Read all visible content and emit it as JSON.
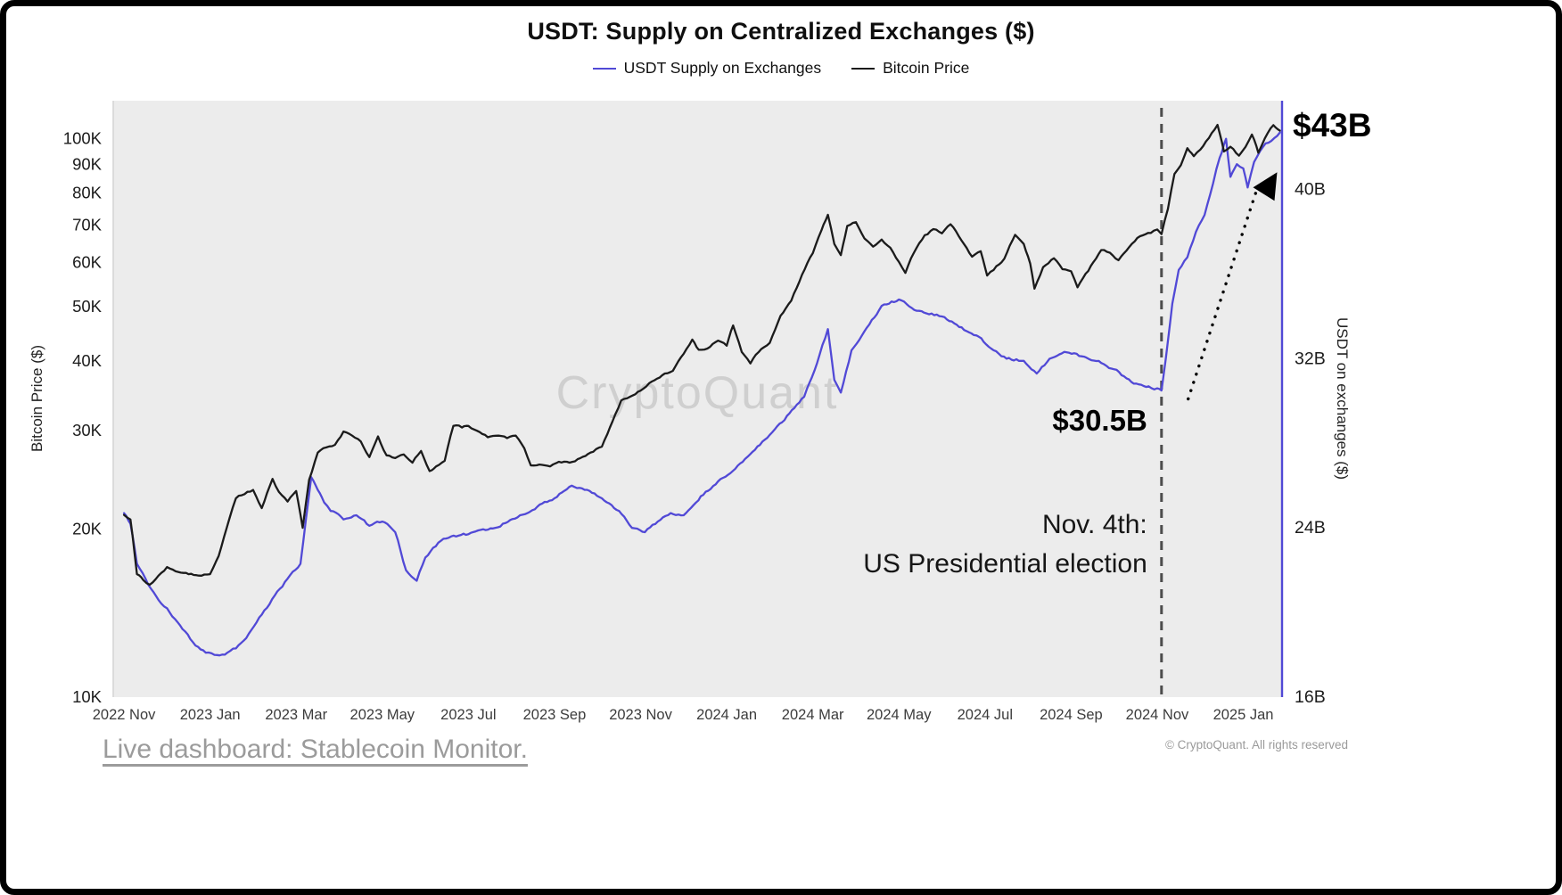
{
  "title": "USDT: Supply on Centralized Exchanges ($)",
  "legend": [
    {
      "label": "USDT Supply on Exchanges",
      "color": "#5149d6"
    },
    {
      "label": "Bitcoin Price",
      "color": "#1b1b1b"
    }
  ],
  "watermark": "CryptoQuant",
  "footer": {
    "link": "Live dashboard: Stablecoin Monitor.",
    "copyright": "© CryptoQuant. All rights reserved"
  },
  "chart_data": {
    "type": "line",
    "x_unit": "months since 2022-11-01",
    "xlim": [
      -0.25,
      26.9
    ],
    "plot_bg": "#ececec",
    "left_axis": {
      "title": "Bitcoin Price ($)",
      "scale": "log",
      "unit": "thousand USD",
      "lim": [
        10,
        117
      ],
      "ticks": [
        {
          "v": 100,
          "label": "100K"
        },
        {
          "v": 90,
          "label": "90K"
        },
        {
          "v": 80,
          "label": "80K"
        },
        {
          "v": 70,
          "label": "70K"
        },
        {
          "v": 60,
          "label": "60K"
        },
        {
          "v": 50,
          "label": "50K"
        },
        {
          "v": 40,
          "label": "40K"
        },
        {
          "v": 30,
          "label": "30K"
        },
        {
          "v": 20,
          "label": "20K"
        },
        {
          "v": 10,
          "label": "10K"
        }
      ]
    },
    "right_axis": {
      "title": "USDT on exchanges ($)",
      "scale": "linear",
      "unit": "billion USD",
      "lim": [
        16,
        44.2
      ],
      "ticks": [
        {
          "v": 40,
          "label": "40B"
        },
        {
          "v": 32,
          "label": "32B"
        },
        {
          "v": 24,
          "label": "24B"
        },
        {
          "v": 16,
          "label": "16B"
        }
      ]
    },
    "x_ticks": [
      {
        "v": 0,
        "label": "2022 Nov"
      },
      {
        "v": 2,
        "label": "2023 Jan"
      },
      {
        "v": 4,
        "label": "2023 Mar"
      },
      {
        "v": 6,
        "label": "2023 May"
      },
      {
        "v": 8,
        "label": "2023 Jul"
      },
      {
        "v": 10,
        "label": "2023 Sep"
      },
      {
        "v": 12,
        "label": "2023 Nov"
      },
      {
        "v": 14,
        "label": "2024 Jan"
      },
      {
        "v": 16,
        "label": "2024 Mar"
      },
      {
        "v": 18,
        "label": "2024 May"
      },
      {
        "v": 20,
        "label": "2024 Jul"
      },
      {
        "v": 22,
        "label": "2024 Sep"
      },
      {
        "v": 24,
        "label": "2024 Nov"
      },
      {
        "v": 26,
        "label": "2025 Jan"
      }
    ],
    "series": [
      {
        "name": "USDT Supply on Exchanges",
        "axis": "right",
        "color": "#5149d6",
        "unit": "billion USD",
        "x": [
          0.0,
          0.15,
          0.3,
          0.5,
          0.8,
          1.0,
          1.3,
          1.6,
          1.9,
          2.1,
          2.4,
          2.6,
          2.9,
          3.2,
          3.5,
          3.8,
          4.1,
          4.35,
          4.5,
          4.65,
          4.8,
          5.1,
          5.4,
          5.7,
          6.0,
          6.3,
          6.55,
          6.8,
          7.0,
          7.3,
          7.6,
          8.0,
          8.4,
          8.8,
          9.2,
          9.6,
          10.0,
          10.4,
          10.7,
          11.1,
          11.5,
          11.8,
          12.1,
          12.4,
          12.7,
          13.0,
          13.4,
          13.8,
          14.2,
          14.6,
          15.0,
          15.4,
          15.8,
          16.1,
          16.35,
          16.5,
          16.65,
          16.9,
          17.2,
          17.6,
          18.0,
          18.3,
          18.7,
          19.0,
          19.4,
          19.8,
          20.2,
          20.5,
          20.9,
          21.2,
          21.5,
          21.9,
          22.3,
          22.7,
          23.0,
          23.4,
          23.8,
          24.0,
          24.1,
          24.2,
          24.35,
          24.5,
          24.7,
          24.9,
          25.1,
          25.3,
          25.45,
          25.6,
          25.7,
          25.85,
          26.0,
          26.1,
          26.25,
          26.45,
          26.65,
          26.85
        ],
        "values": [
          24.7,
          24.2,
          22.3,
          21.6,
          20.6,
          20.2,
          19.4,
          18.6,
          18.1,
          18.0,
          18.1,
          18.3,
          19.0,
          19.9,
          20.8,
          21.6,
          22.3,
          26.4,
          25.8,
          25.2,
          24.8,
          24.4,
          24.6,
          24.1,
          24.3,
          23.8,
          22.0,
          21.5,
          22.6,
          23.3,
          23.6,
          23.7,
          23.9,
          24.2,
          24.6,
          25.0,
          25.4,
          26.0,
          25.8,
          25.4,
          24.8,
          24.0,
          23.8,
          24.3,
          24.7,
          24.6,
          25.5,
          26.2,
          26.8,
          27.6,
          28.4,
          29.3,
          30.2,
          31.8,
          33.4,
          31.0,
          30.4,
          32.4,
          33.3,
          34.5,
          34.8,
          34.4,
          34.1,
          34.0,
          33.5,
          33.1,
          32.4,
          32.0,
          31.9,
          31.3,
          32.0,
          32.3,
          32.1,
          31.8,
          31.5,
          30.9,
          30.7,
          30.6,
          30.5,
          32.0,
          34.6,
          36.2,
          36.8,
          38.0,
          38.8,
          40.3,
          41.5,
          42.4,
          40.6,
          41.2,
          41.0,
          40.1,
          41.3,
          42.0,
          42.3,
          42.7
        ]
      },
      {
        "name": "Bitcoin Price",
        "axis": "left",
        "color": "#1b1b1b",
        "unit": "thousand USD",
        "x": [
          0.0,
          0.15,
          0.3,
          0.45,
          0.6,
          0.8,
          1.0,
          1.2,
          1.5,
          1.8,
          2.0,
          2.2,
          2.45,
          2.6,
          2.8,
          3.0,
          3.2,
          3.45,
          3.6,
          3.8,
          4.0,
          4.15,
          4.3,
          4.5,
          4.7,
          4.9,
          5.1,
          5.3,
          5.5,
          5.7,
          5.9,
          6.1,
          6.3,
          6.5,
          6.7,
          6.9,
          7.1,
          7.25,
          7.45,
          7.65,
          7.85,
          8.0,
          8.2,
          8.45,
          8.7,
          8.9,
          9.1,
          9.3,
          9.45,
          9.65,
          9.9,
          10.1,
          10.35,
          10.6,
          10.9,
          11.1,
          11.35,
          11.55,
          11.75,
          12.0,
          12.2,
          12.5,
          12.75,
          13.0,
          13.2,
          13.35,
          13.55,
          13.8,
          14.0,
          14.15,
          14.35,
          14.55,
          14.8,
          15.0,
          15.25,
          15.5,
          15.75,
          16.0,
          16.2,
          16.35,
          16.5,
          16.65,
          16.8,
          17.0,
          17.2,
          17.4,
          17.6,
          17.8,
          18.0,
          18.15,
          18.35,
          18.6,
          18.8,
          19.0,
          19.2,
          19.45,
          19.7,
          19.9,
          20.05,
          20.2,
          20.45,
          20.7,
          20.9,
          21.05,
          21.15,
          21.35,
          21.6,
          21.8,
          22.0,
          22.15,
          22.4,
          22.7,
          22.9,
          23.1,
          23.35,
          23.6,
          23.85,
          24.0,
          24.1,
          24.25,
          24.4,
          24.55,
          24.7,
          24.85,
          25.0,
          25.2,
          25.4,
          25.55,
          25.7,
          25.9,
          26.05,
          26.2,
          26.35,
          26.5,
          26.7,
          26.85
        ],
        "values": [
          21.2,
          20.8,
          16.6,
          16.2,
          15.9,
          16.5,
          17.1,
          16.8,
          16.6,
          16.5,
          16.6,
          17.9,
          20.9,
          22.7,
          23.1,
          23.5,
          21.8,
          24.6,
          23.3,
          22.4,
          23.4,
          20.1,
          24.5,
          27.4,
          28.0,
          28.3,
          29.9,
          29.4,
          28.7,
          26.9,
          29.3,
          27.1,
          26.8,
          27.2,
          26.3,
          27.6,
          25.4,
          25.9,
          26.5,
          30.6,
          30.4,
          30.6,
          30.0,
          29.2,
          29.4,
          29.1,
          29.4,
          27.9,
          26.0,
          26.1,
          25.9,
          26.4,
          26.3,
          26.8,
          27.5,
          28.1,
          31.2,
          34.0,
          34.5,
          35.4,
          36.5,
          37.7,
          38.4,
          41.2,
          43.7,
          41.9,
          42.1,
          43.5,
          42.6,
          46.3,
          41.5,
          39.6,
          42.0,
          43.1,
          48.2,
          51.3,
          57.1,
          62.4,
          68.5,
          73.1,
          64.8,
          61.9,
          69.8,
          70.9,
          66.3,
          64.1,
          66.0,
          63.8,
          60.2,
          57.5,
          62.5,
          67.2,
          68.9,
          67.7,
          70.3,
          65.8,
          61.5,
          62.9,
          56.9,
          58.2,
          61.0,
          67.3,
          64.8,
          59.8,
          53.9,
          58.9,
          61.1,
          58.4,
          57.9,
          54.2,
          58.0,
          63.2,
          62.5,
          60.6,
          64.0,
          66.9,
          67.8,
          68.8,
          67.5,
          74.9,
          86.5,
          89.7,
          96.2,
          93.1,
          95.6,
          100.3,
          105.9,
          94.9,
          96.8,
          93.3,
          96.7,
          101.8,
          94.4,
          100.2,
          105.8,
          103.4
        ]
      }
    ],
    "annotations": {
      "latest": {
        "x": 26.85,
        "value": "$43B"
      },
      "election": {
        "x": 24.1,
        "value": "$30.5B",
        "line1": "Nov. 4th:",
        "line2": "US Presidential election"
      },
      "arrow": {
        "x1": 24.72,
        "v1": 30.1,
        "x2": 26.33,
        "v2": 40.1
      }
    }
  }
}
